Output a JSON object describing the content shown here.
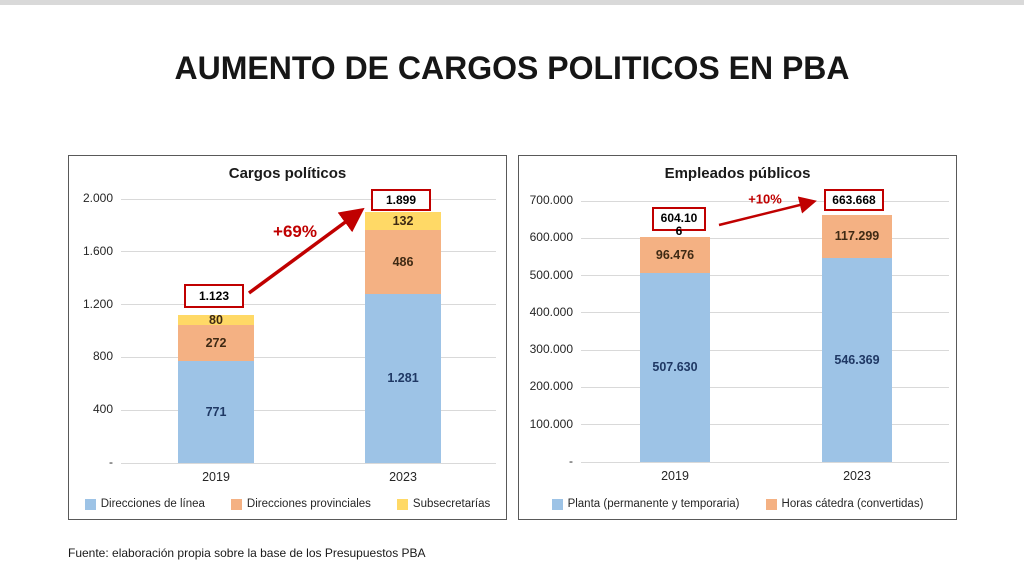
{
  "page": {
    "title": "AUMENTO DE CARGOS POLITICOS EN PBA",
    "source_note": "Fuente: elaboración propia sobre la base de los Presupuestos PBA"
  },
  "colors": {
    "series_blue": "#9DC3E6",
    "series_orange": "#F4B183",
    "series_yellow": "#FFD966",
    "annotation_red": "#C00000",
    "gridline_gray": "#D9D9D9",
    "label_navy": "#1F3864",
    "label_brown": "#3F2A14"
  },
  "chart_data": [
    {
      "type": "bar",
      "stacked": true,
      "title": "Cargos políticos",
      "xlabel": "",
      "ylabel": "",
      "grid": true,
      "legend_position": "bottom",
      "categories": [
        "2019",
        "2023"
      ],
      "series": [
        {
          "name": "Direcciones de línea",
          "color": "#9DC3E6",
          "label_color": "#1F3864",
          "values": [
            771,
            1281
          ],
          "labels": [
            "771",
            "1.281"
          ]
        },
        {
          "name": "Direcciones provinciales",
          "color": "#F4B183",
          "label_color": "#3F2A14",
          "values": [
            272,
            486
          ],
          "labels": [
            "272",
            "486"
          ]
        },
        {
          "name": "Subsecretarías",
          "color": "#FFD966",
          "label_color": "#3F2A14",
          "values": [
            80,
            132
          ],
          "labels": [
            "80",
            "132"
          ]
        }
      ],
      "totals": {
        "values": [
          1123,
          1899
        ],
        "label_lines": [
          [
            "1.123"
          ],
          [
            "1.899"
          ]
        ]
      },
      "change_label": "+69%",
      "ylim": [
        0,
        2000
      ],
      "yticks": [
        {
          "value": 0,
          "label": "-"
        },
        {
          "value": 400,
          "label": "400"
        },
        {
          "value": 800,
          "label": "800"
        },
        {
          "value": 1200,
          "label": "1.200"
        },
        {
          "value": 1600,
          "label": "1.600"
        },
        {
          "value": 2000,
          "label": "2.000"
        }
      ]
    },
    {
      "type": "bar",
      "stacked": true,
      "title": "Empleados públicos",
      "xlabel": "",
      "ylabel": "",
      "grid": true,
      "legend_position": "bottom",
      "categories": [
        "2019",
        "2023"
      ],
      "series": [
        {
          "name": "Planta (permanente y temporaria)",
          "color": "#9DC3E6",
          "label_color": "#1F3864",
          "values": [
            507630,
            546369
          ],
          "labels": [
            "507.630",
            "546.369"
          ]
        },
        {
          "name": "Horas cátedra (convertidas)",
          "color": "#F4B183",
          "label_color": "#3F2A14",
          "values": [
            96476,
            117299
          ],
          "labels": [
            "96.476",
            "117.299"
          ]
        }
      ],
      "totals": {
        "values": [
          604106,
          663668
        ],
        "label_lines": [
          [
            "604.10",
            "6"
          ],
          [
            "663.668"
          ]
        ]
      },
      "change_label": "+10%",
      "ylim": [
        0,
        700000
      ],
      "yticks": [
        {
          "value": 0,
          "label": "-"
        },
        {
          "value": 100000,
          "label": "100.000"
        },
        {
          "value": 200000,
          "label": "200.000"
        },
        {
          "value": 300000,
          "label": "300.000"
        },
        {
          "value": 400000,
          "label": "400.000"
        },
        {
          "value": 500000,
          "label": "500.000"
        },
        {
          "value": 600000,
          "label": "600.000"
        },
        {
          "value": 700000,
          "label": "700.000"
        }
      ]
    }
  ]
}
